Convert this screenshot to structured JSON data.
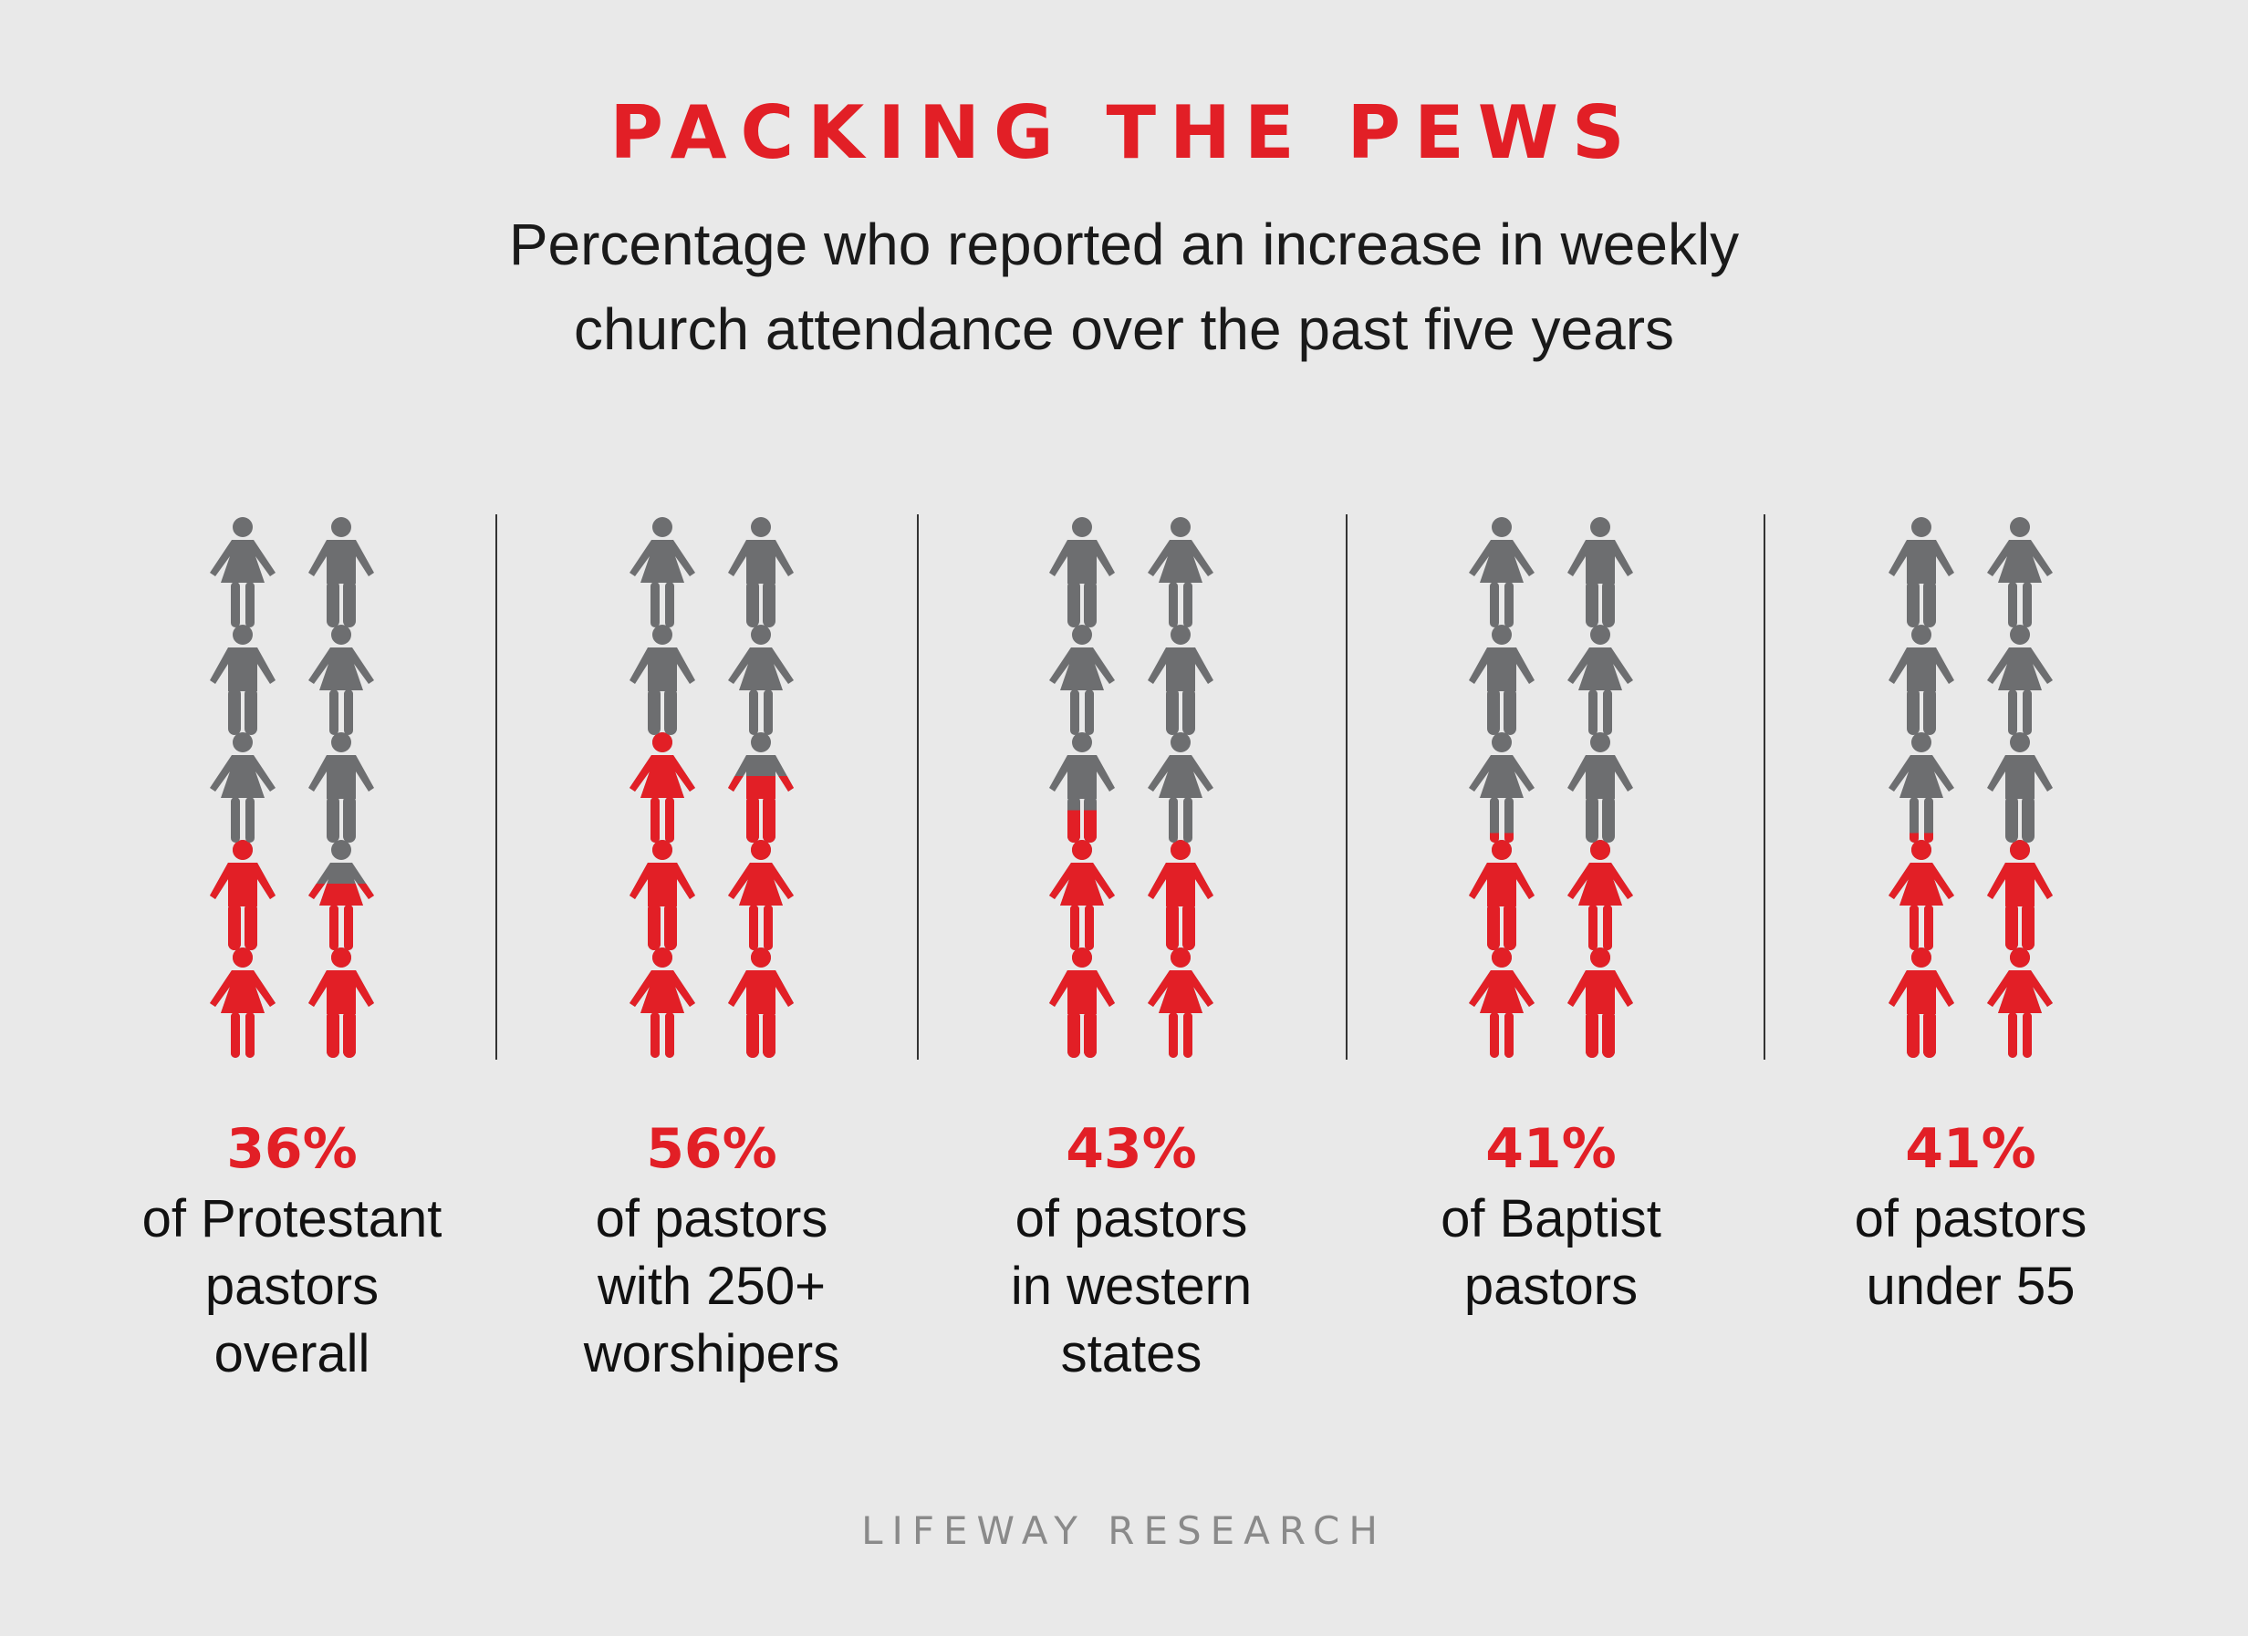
{
  "title": "PACKING THE PEWS",
  "subtitle": [
    "Percentage who reported an increase in weekly",
    "church attendance over the past five years"
  ],
  "source": "LIFEWAY RESEARCH",
  "colors": {
    "highlight": "#e21f26",
    "base": "#6d6e70",
    "background": "#e9e9e9",
    "divider": "#333333"
  },
  "icons": [
    "female-figure-icon",
    "male-figure-icon"
  ],
  "chart_data": {
    "type": "pictogram",
    "icons_per_column": 10,
    "columns": [
      {
        "value_label": "36%",
        "value": 36,
        "description": [
          "of Protestant",
          "pastors",
          "overall"
        ],
        "figures": [
          "female",
          "male",
          "male",
          "female",
          "female",
          "male",
          "male",
          "female",
          "female",
          "male"
        ]
      },
      {
        "value_label": "56%",
        "value": 56,
        "description": [
          "of pastors",
          "with 250+",
          "worshipers"
        ],
        "figures": [
          "female",
          "male",
          "male",
          "female",
          "female",
          "male",
          "male",
          "female",
          "female",
          "male"
        ]
      },
      {
        "value_label": "43%",
        "value": 43,
        "description": [
          "of pastors",
          "in western",
          "states"
        ],
        "figures": [
          "male",
          "female",
          "female",
          "male",
          "male",
          "female",
          "female",
          "male",
          "male",
          "female"
        ]
      },
      {
        "value_label": "41%",
        "value": 41,
        "description": [
          "of Baptist",
          "pastors"
        ],
        "figures": [
          "female",
          "male",
          "male",
          "female",
          "female",
          "male",
          "male",
          "female",
          "female",
          "male"
        ]
      },
      {
        "value_label": "41%",
        "value": 41,
        "description": [
          "of pastors",
          "under 55"
        ],
        "figures": [
          "male",
          "female",
          "female",
          "male",
          "female",
          "male",
          "male",
          "female",
          "male",
          "female"
        ]
      }
    ]
  }
}
